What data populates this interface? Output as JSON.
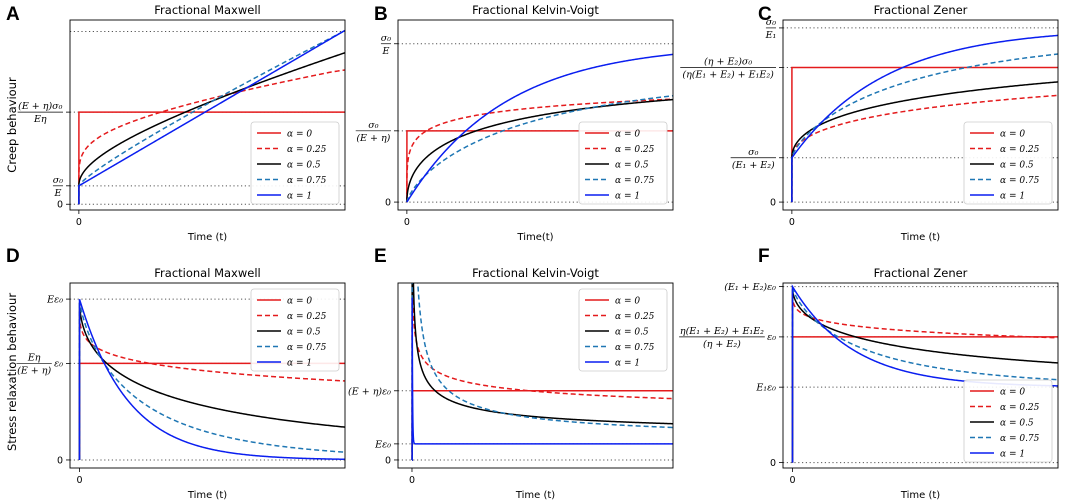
{
  "row_labels": {
    "creep": "Creep behaviour",
    "relaxation": "Stress relaxation behaviour"
  },
  "colors": {
    "a0": "#e41a1c",
    "a025": "#e41a1c",
    "a05": "#000000",
    "a075": "#1f77b4",
    "a1": "#0a1ef0"
  },
  "chart_data": [
    {
      "panel": "A",
      "title": "Fractional Maxwell",
      "type": "line",
      "xlabel": "Time (t)",
      "xlim": [
        -0.1,
        3
      ],
      "ylim": [
        -0.05,
        1.6
      ],
      "xticks": [
        "0"
      ],
      "hlines": [
        0,
        0.16,
        0.8,
        1.5
      ],
      "yticks": [
        {
          "v": 0.8,
          "label": "(E + η)σ₀ / Eη"
        },
        {
          "v": 0.16,
          "label": "σ₀ / E"
        },
        {
          "v": 0,
          "label": "0"
        }
      ],
      "legend": {
        "position": "lower-right",
        "labels": [
          "α = 0",
          "α = 0.25",
          "α = 0.5",
          "α = 0.75",
          "α = 1"
        ]
      }
    },
    {
      "panel": "B",
      "title": "Fractional Kelvin-Voigt",
      "type": "line",
      "xlabel": "Time(t)",
      "xlim": [
        -0.1,
        3
      ],
      "ylim": [
        -0.05,
        1.15
      ],
      "xticks": [
        "0"
      ],
      "hlines": [
        0,
        0.45,
        1
      ],
      "yticks": [
        {
          "v": 1,
          "label": "σ₀ / E"
        },
        {
          "v": 0.45,
          "label": "σ₀ / (E + η)"
        },
        {
          "v": 0,
          "label": "0"
        }
      ],
      "legend": {
        "position": "lower-right",
        "labels": [
          "α = 0",
          "α = 0.25",
          "α = 0.5",
          "α = 0.75",
          "α = 1"
        ]
      }
    },
    {
      "panel": "C",
      "title": "Fractional Zener",
      "type": "line",
      "xlabel": "Time (t)",
      "xlim": [
        -0.1,
        3
      ],
      "ylim": [
        -0.05,
        1.15
      ],
      "xticks": [
        "0"
      ],
      "hlines": [
        0,
        0.28,
        0.85,
        1.1
      ],
      "yticks": [
        {
          "v": 1.1,
          "label": "σ₀ / E₁"
        },
        {
          "v": 0.85,
          "label": "(η + E₂)σ₀ / (η(E₁ + E₂) + E₁E₂)"
        },
        {
          "v": 0.28,
          "label": "σ₀ / (E₁ + E₂)"
        },
        {
          "v": 0,
          "label": "0"
        }
      ],
      "legend": {
        "position": "lower-right",
        "labels": [
          "α = 0",
          "α = 0.25",
          "α = 0.5",
          "α = 0.75",
          "α = 1"
        ]
      }
    },
    {
      "panel": "D",
      "title": "Fractional Maxwell",
      "type": "line",
      "xlabel": "Time (t)",
      "xlim": [
        -0.1,
        2.8
      ],
      "ylim": [
        -0.05,
        1.1
      ],
      "xticks": [
        "0"
      ],
      "hlines": [
        0,
        0.6,
        1
      ],
      "yticks": [
        {
          "v": 1,
          "label": "Eε₀"
        },
        {
          "v": 0.6,
          "label": "Eη / (E + η) ε₀"
        },
        {
          "v": 0,
          "label": "0"
        }
      ],
      "legend": {
        "position": "upper-right",
        "labels": [
          "α = 0",
          "α = 0.25",
          "α = 0.5",
          "α = 0.75",
          "α = 1"
        ]
      }
    },
    {
      "panel": "E",
      "title": "Fractional Kelvin-Voigt",
      "type": "line",
      "xlabel": "Time (t)",
      "xlim": [
        -0.15,
        2.8
      ],
      "ylim": [
        -0.05,
        1.1
      ],
      "xticks": [
        "0"
      ],
      "hlines": [
        0,
        0.1,
        0.43
      ],
      "yticks": [
        {
          "v": 0.43,
          "label": "(E + η)ε₀"
        },
        {
          "v": 0.1,
          "label": "Eε₀"
        },
        {
          "v": 0,
          "label": "0"
        }
      ],
      "legend": {
        "position": "upper-right",
        "labels": [
          "α = 0",
          "α = 0.25",
          "α = 0.5",
          "α = 0.75",
          "α = 1"
        ]
      }
    },
    {
      "panel": "F",
      "title": "Fractional Zener",
      "type": "line",
      "xlabel": "Time (t)",
      "xlim": [
        -0.1,
        2.8
      ],
      "ylim": [
        -0.03,
        1.0
      ],
      "xticks": [
        "0"
      ],
      "hlines": [
        0,
        0.42,
        0.7,
        0.98
      ],
      "yticks": [
        {
          "v": 0.98,
          "label": "(E₁ + E₂)ε₀"
        },
        {
          "v": 0.7,
          "label": "η(E₁ + E₂) + E₁E₂ / (η + E₂) ε₀"
        },
        {
          "v": 0.42,
          "label": "E₁ε₀"
        },
        {
          "v": 0,
          "label": "0"
        }
      ],
      "legend": {
        "position": "lower-right",
        "labels": [
          "α = 0",
          "α = 0.25",
          "α = 0.5",
          "α = 0.75",
          "α = 1"
        ]
      }
    }
  ]
}
